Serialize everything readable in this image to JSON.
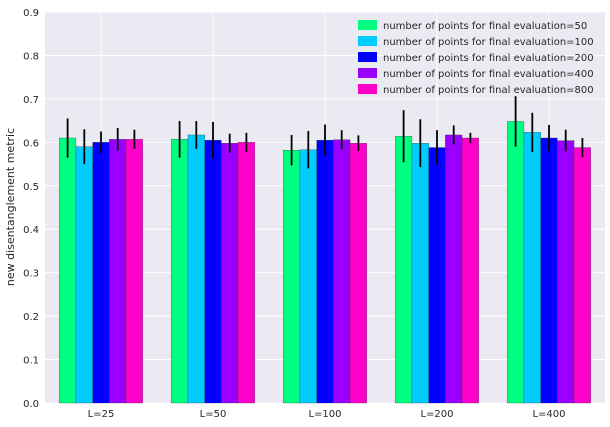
{
  "chart_data": {
    "type": "bar",
    "title": "",
    "xlabel": "",
    "ylabel": "new disentanglement metric",
    "ylim": [
      0,
      0.9
    ],
    "yticks": [
      0.0,
      0.1,
      0.2,
      0.3,
      0.4,
      0.5,
      0.6,
      0.7,
      0.8,
      0.9
    ],
    "ytick_labels": [
      "0.0",
      "0.1",
      "0.2",
      "0.3",
      "0.4",
      "0.5",
      "0.6",
      "0.7",
      "0.8",
      "0.9"
    ],
    "grid": true,
    "legend_position": "top-right",
    "categories": [
      "L=25",
      "L=50",
      "L=100",
      "L=200",
      "L=400"
    ],
    "series": [
      {
        "name": "number of points for final evaluation=50",
        "color": "#00ff80",
        "values": [
          0.61,
          0.607,
          0.582,
          0.614,
          0.648
        ],
        "errors": [
          0.045,
          0.042,
          0.035,
          0.06,
          0.058
        ]
      },
      {
        "name": "number of points for final evaluation=100",
        "color": "#00ccff",
        "values": [
          0.59,
          0.617,
          0.583,
          0.598,
          0.623
        ],
        "errors": [
          0.04,
          0.032,
          0.043,
          0.055,
          0.045
        ]
      },
      {
        "name": "number of points for final evaluation=200",
        "color": "#0000ff",
        "values": [
          0.6,
          0.605,
          0.605,
          0.588,
          0.61
        ],
        "errors": [
          0.025,
          0.042,
          0.036,
          0.04,
          0.03
        ]
      },
      {
        "name": "number of points for final evaluation=400",
        "color": "#9900ff",
        "values": [
          0.607,
          0.598,
          0.606,
          0.617,
          0.604
        ],
        "errors": [
          0.026,
          0.022,
          0.022,
          0.022,
          0.025
        ]
      },
      {
        "name": "number of points for final evaluation=800",
        "color": "#ff00cc",
        "values": [
          0.607,
          0.6,
          0.598,
          0.61,
          0.588
        ],
        "errors": [
          0.022,
          0.022,
          0.018,
          0.012,
          0.022
        ]
      }
    ]
  }
}
